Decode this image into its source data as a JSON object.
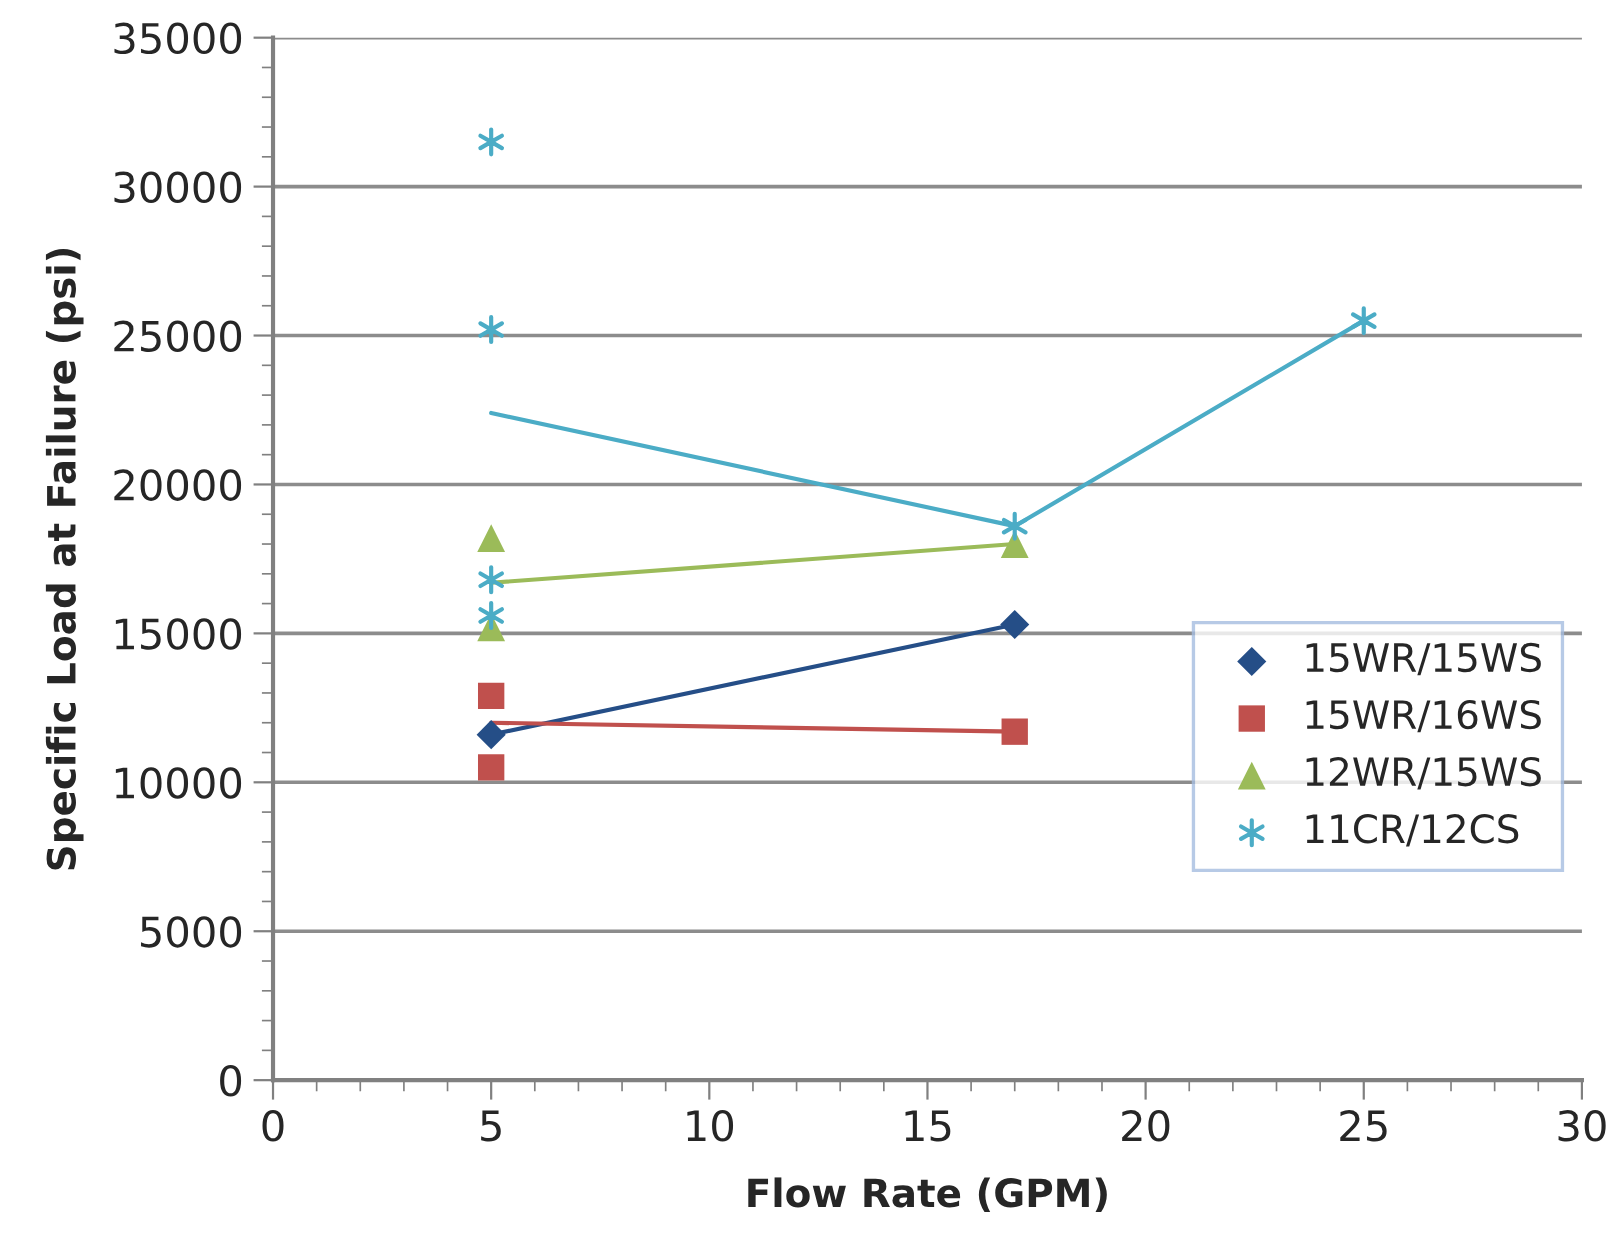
{
  "chart_data": {
    "type": "scatter",
    "xlabel": "Flow Rate (GPM)",
    "ylabel": "Specific Load at Failure (psi)",
    "xlim": [
      0,
      30
    ],
    "xticks": [
      0,
      5,
      10,
      15,
      20,
      25,
      30
    ],
    "ylim": [
      0,
      35000
    ],
    "yticks": [
      0,
      5000,
      10000,
      15000,
      20000,
      25000,
      30000,
      35000
    ],
    "grid": "y",
    "legend": "right",
    "series": [
      {
        "name": "15WR/15WS",
        "marker": "diamond",
        "color": "#254e87",
        "x": [
          5,
          17
        ],
        "values": [
          11600,
          15300
        ]
      },
      {
        "name": "15WR/16WS",
        "marker": "square",
        "color": "#c0504d",
        "x": [
          5,
          5,
          17
        ],
        "values": [
          12900,
          10500,
          11700
        ]
      },
      {
        "name": "12WR/15WS",
        "marker": "triangle",
        "color": "#9bbb59",
        "x": [
          5,
          5,
          17
        ],
        "values": [
          18200,
          15200,
          18000
        ]
      },
      {
        "name": "11CR/12CS",
        "marker": "cross",
        "color": "#4bacc6",
        "x": [
          5,
          5,
          5,
          5,
          17,
          25
        ],
        "values": [
          31500,
          25200,
          16800,
          15600,
          18600,
          25500
        ]
      },
      {
        "type": "line",
        "marker": "none",
        "color": "#254e87",
        "x": [
          5,
          17
        ],
        "values": [
          11600,
          15300
        ]
      },
      {
        "type": "line",
        "marker": "none",
        "color": "#c0504d",
        "x": [
          5,
          17
        ],
        "values": [
          12000,
          11700
        ]
      },
      {
        "type": "line",
        "marker": "none",
        "color": "#9bbb59",
        "x": [
          5,
          17
        ],
        "values": [
          16700,
          18000
        ]
      },
      {
        "type": "line",
        "marker": "none",
        "color": "#4bacc6",
        "x": [
          5,
          17,
          25
        ],
        "values": [
          22400,
          18600,
          25500
        ]
      }
    ]
  }
}
